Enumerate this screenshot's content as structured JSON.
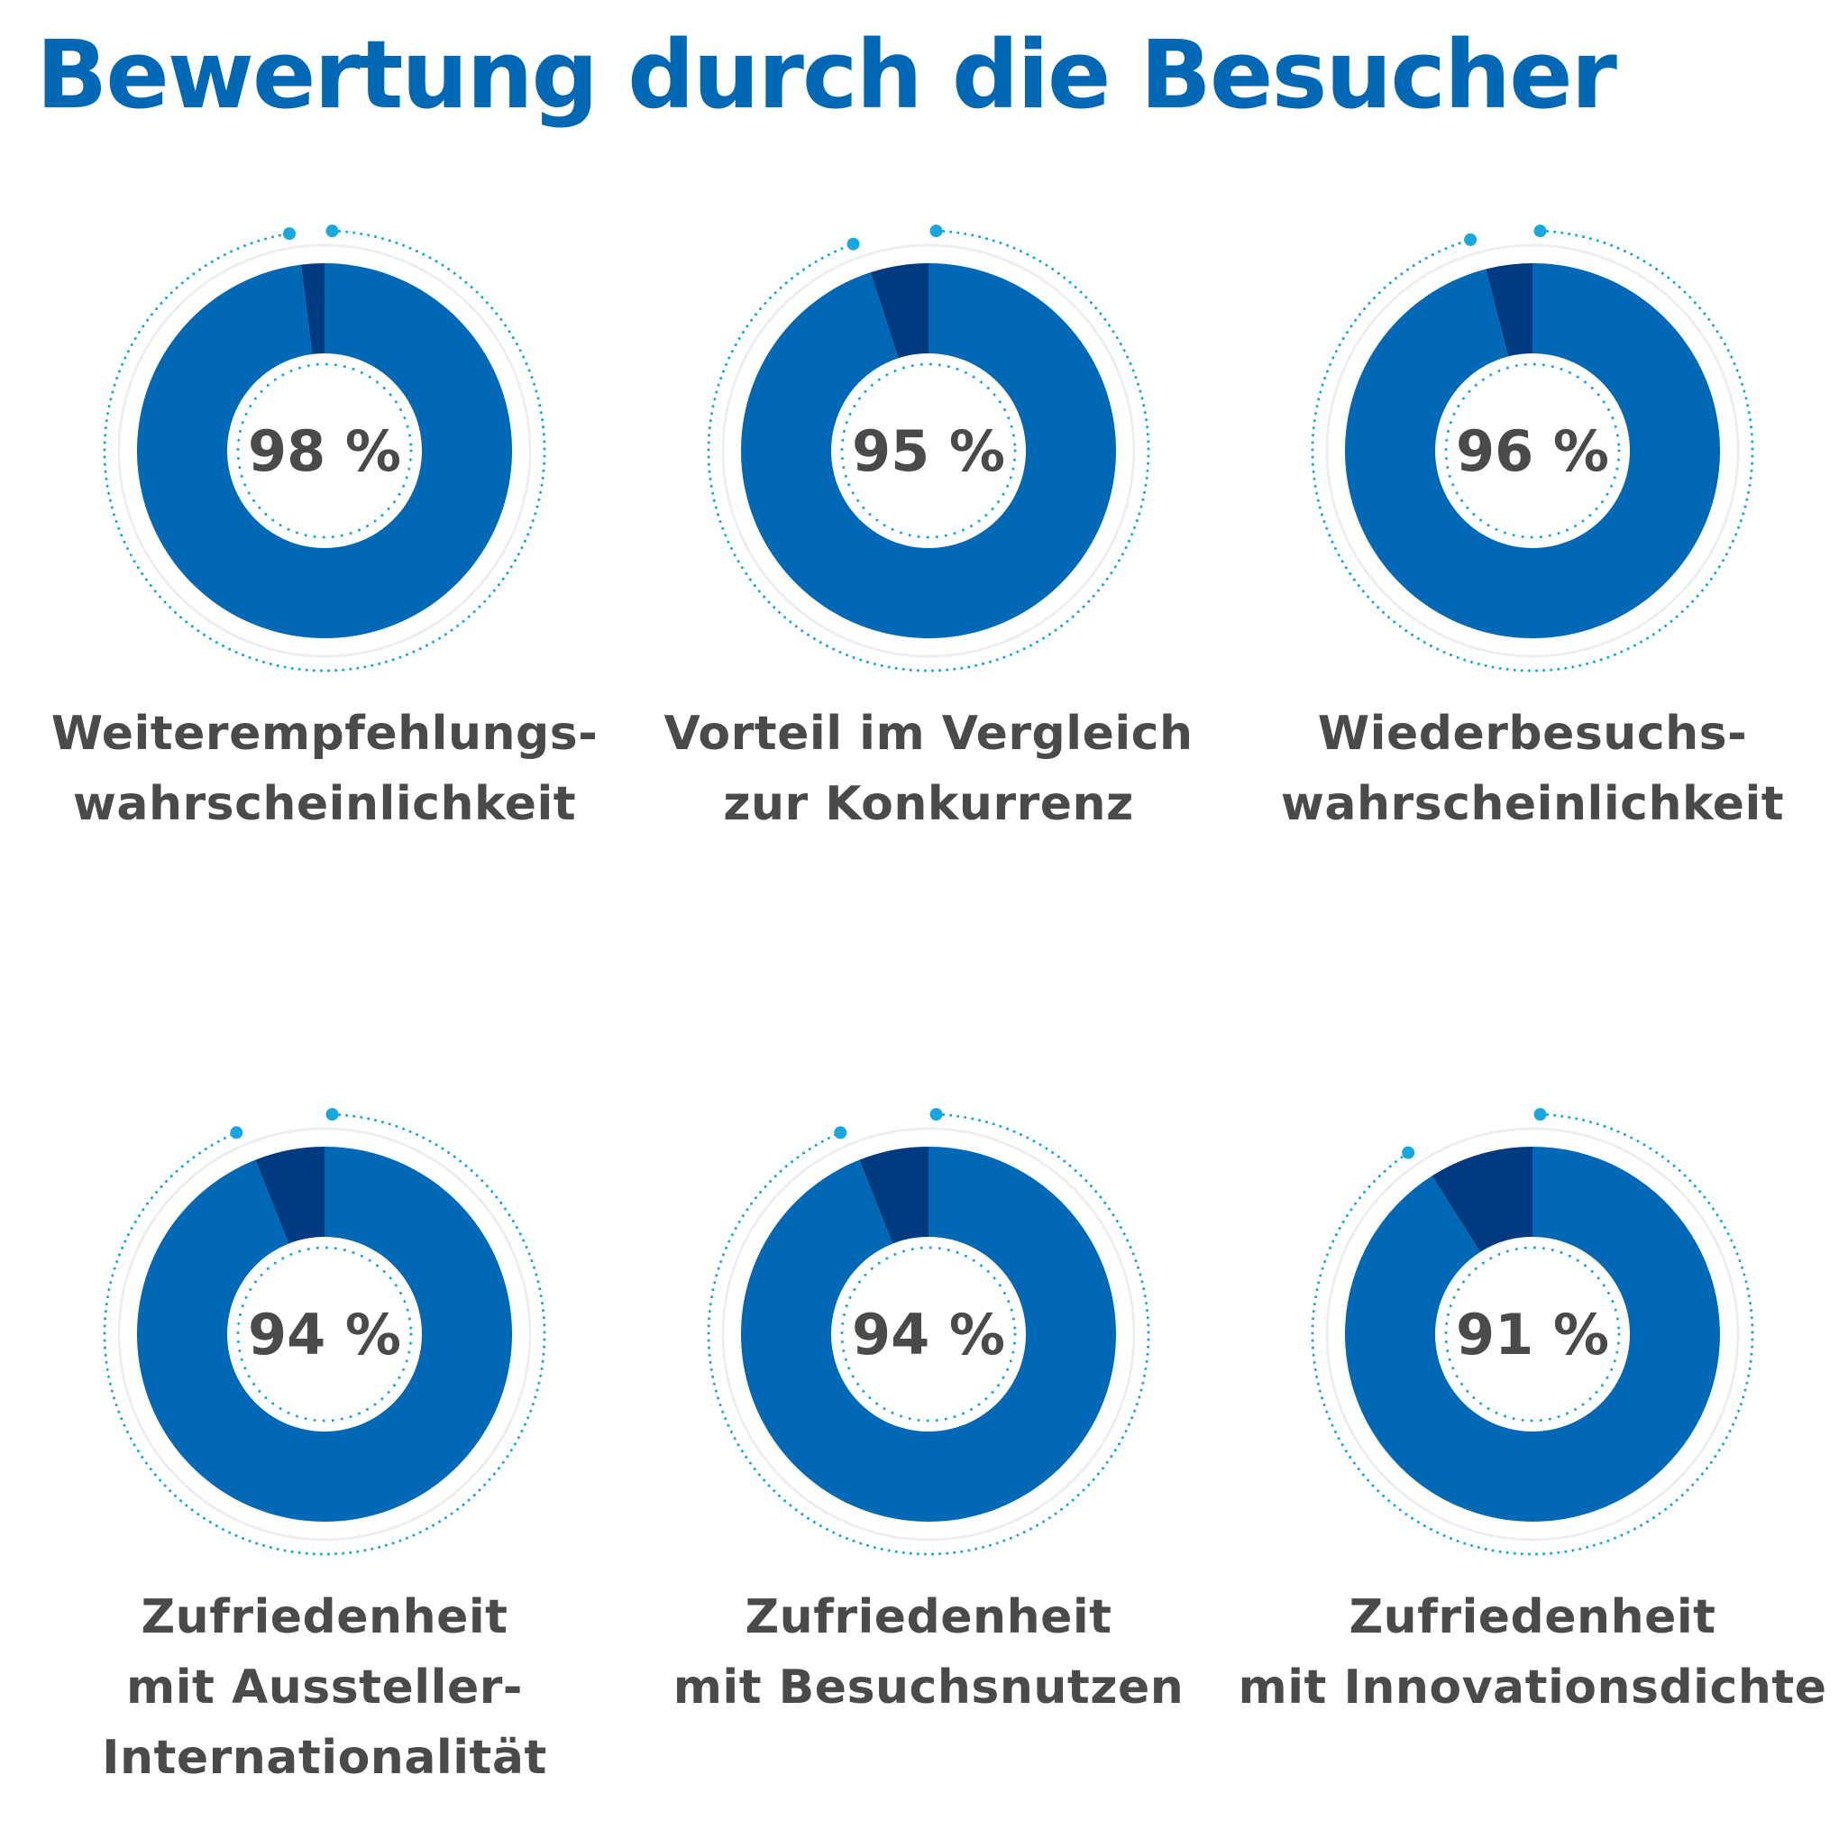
{
  "header": {
    "title": "Bewertung durch die Besucher"
  },
  "colors": {
    "primary": "#0068b4",
    "remainder": "#003a80",
    "accent": "#1aa6df",
    "text": "#4a4a4a",
    "track": "#eeeeee"
  },
  "chart_data": [
    {
      "type": "pie",
      "value": 98,
      "label_text": "98 %",
      "label_lines": [
        "Weiterempfehlungs-",
        "wahrscheinlichkeit"
      ]
    },
    {
      "type": "pie",
      "value": 95,
      "label_text": "95 %",
      "label_lines": [
        "Vorteil im Vergleich",
        "zur Konkurrenz"
      ]
    },
    {
      "type": "pie",
      "value": 96,
      "label_text": "96 %",
      "label_lines": [
        "Wiederbesuchs-",
        "wahrscheinlichkeit"
      ]
    },
    {
      "type": "pie",
      "value": 94,
      "label_text": "94 %",
      "label_lines": [
        "Zufriedenheit",
        "mit Aussteller-",
        "Internationalität"
      ]
    },
    {
      "type": "pie",
      "value": 94,
      "label_text": "94 %",
      "label_lines": [
        "Zufriedenheit",
        "mit Besuchsnutzen"
      ]
    },
    {
      "type": "pie",
      "value": 91,
      "label_text": "91 %",
      "label_lines": [
        "Zufriedenheit",
        "mit Innovationsdichte"
      ]
    }
  ]
}
